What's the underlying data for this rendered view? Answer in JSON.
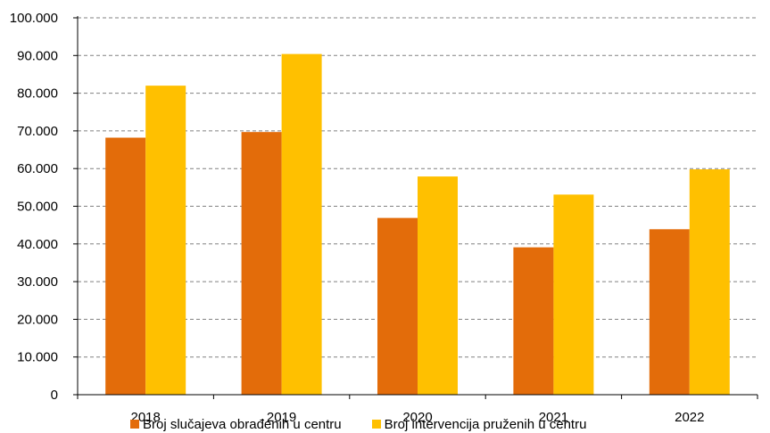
{
  "chart_data": {
    "type": "bar",
    "categories": [
      "2018",
      "2019",
      "2020",
      "2021",
      "2022"
    ],
    "series": [
      {
        "name": "Broj slučajeva obrađenih u centru",
        "color": "#E36C0A",
        "values": [
          68200,
          69700,
          46900,
          39100,
          43900
        ]
      },
      {
        "name": "Broj intervencija pruženih u centru",
        "color": "#FFC000",
        "values": [
          82000,
          90400,
          57900,
          53100,
          59800
        ]
      }
    ],
    "y_ticks": [
      "0",
      "10.000",
      "20.000",
      "30.000",
      "40.000",
      "50.000",
      "60.000",
      "70.000",
      "80.000",
      "90.000",
      "100.000"
    ],
    "ylim": [
      0,
      100000
    ],
    "grid": "horizontal dashed",
    "legend_position": "bottom"
  }
}
